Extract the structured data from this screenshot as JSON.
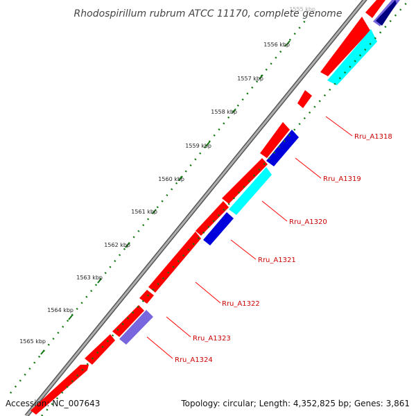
{
  "title": "Rhodospirillum rubrum ATCC 11170, complete genome",
  "footer": {
    "accession": "Accession: NC_007643",
    "summary": "Topology: circular; Length: 4,352,825 bp; Genes: 3,861"
  },
  "ticks": [
    "1565 kbp",
    "1564 kbp",
    "1563 kbp",
    "1562 kbp",
    "1561 kbp",
    "1560 kbp",
    "1559 kbp",
    "1558 kbp",
    "1557 kbp",
    "1556 kbp",
    "1555 kbp"
  ],
  "gene_labels": [
    "Rru_A1318",
    "Rru_A1319",
    "Rru_A1320",
    "Rru_A1321",
    "Rru_A1322",
    "Rru_A1323",
    "Rru_A1324"
  ],
  "colors": {
    "forward_cds": "#ff0000",
    "reverse_cds_blue": "#0000dd",
    "reverse_cds_cyan": "#00ffff",
    "reverse_cds_violet": "#7766dd",
    "dark_navy": "#000080",
    "backbone": "#888888",
    "dots": "#117711",
    "label_line": "#ff0000"
  }
}
